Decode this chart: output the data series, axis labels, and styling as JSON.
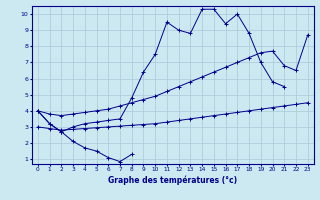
{
  "xlabel": "Graphe des températures (°c)",
  "xlim": [
    -0.5,
    23.5
  ],
  "ylim": [
    0.7,
    10.5
  ],
  "xticks": [
    0,
    1,
    2,
    3,
    4,
    5,
    6,
    7,
    8,
    9,
    10,
    11,
    12,
    13,
    14,
    15,
    16,
    17,
    18,
    19,
    20,
    21,
    22,
    23
  ],
  "yticks": [
    1,
    2,
    3,
    4,
    5,
    6,
    7,
    8,
    9,
    10
  ],
  "background_color": "#cce8f0",
  "line_color": "#00008b",
  "grid_color": "#aac8d8",
  "line1_x": [
    0,
    1,
    2,
    3,
    4,
    5,
    6,
    7,
    8
  ],
  "line1_y": [
    4.0,
    3.2,
    2.7,
    2.1,
    1.7,
    1.5,
    1.1,
    0.85,
    1.3
  ],
  "line2_x": [
    0,
    1,
    2,
    3,
    4,
    5,
    6,
    7,
    8,
    9,
    10,
    11,
    12,
    13,
    14,
    15,
    16,
    17,
    18,
    19,
    20,
    21
  ],
  "line2_y": [
    4.0,
    3.2,
    2.7,
    3.0,
    3.2,
    3.3,
    3.4,
    3.5,
    4.8,
    6.4,
    7.5,
    9.5,
    9.0,
    8.8,
    10.3,
    10.3,
    9.4,
    10.0,
    8.8,
    7.0,
    5.8,
    5.5
  ],
  "line3_x": [
    0,
    1,
    2,
    3,
    4,
    5,
    6,
    7,
    8,
    9,
    10,
    11,
    12,
    13,
    14,
    15,
    16,
    17,
    18,
    19,
    20,
    21,
    22,
    23
  ],
  "line3_y": [
    3.0,
    2.9,
    2.8,
    2.85,
    2.9,
    2.95,
    3.0,
    3.05,
    3.1,
    3.15,
    3.2,
    3.3,
    3.4,
    3.5,
    3.6,
    3.7,
    3.8,
    3.9,
    4.0,
    4.1,
    4.2,
    4.3,
    4.4,
    4.5
  ],
  "line4_x": [
    0,
    1,
    2,
    3,
    4,
    5,
    6,
    7,
    8,
    9,
    10,
    11,
    12,
    13,
    14,
    15,
    16,
    17,
    18,
    19,
    20,
    21,
    22,
    23
  ],
  "line4_y": [
    4.0,
    3.8,
    3.7,
    3.8,
    3.9,
    4.0,
    4.1,
    4.3,
    4.5,
    4.7,
    4.9,
    5.2,
    5.5,
    5.8,
    6.1,
    6.4,
    6.7,
    7.0,
    7.3,
    7.6,
    7.7,
    6.8,
    6.5,
    8.7
  ]
}
